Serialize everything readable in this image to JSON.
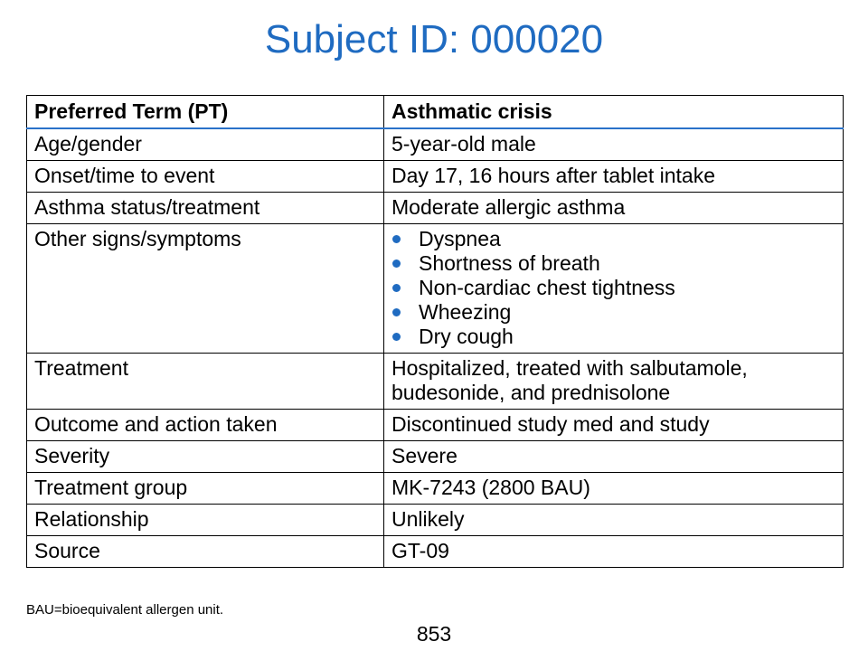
{
  "title": "Subject ID: 000020",
  "table": {
    "header": {
      "label": "Preferred Term (PT)",
      "value": "Asthmatic crisis"
    },
    "rows": [
      {
        "label": "Age/gender",
        "value": "5-year-old male"
      },
      {
        "label": "Onset/time to event",
        "value": "Day 17, 16 hours after tablet intake"
      },
      {
        "label": "Asthma status/treatment",
        "value": "Moderate allergic asthma"
      },
      {
        "label": "Other signs/symptoms",
        "items": [
          "Dyspnea",
          "Shortness of breath",
          "Non-cardiac chest tightness",
          "Wheezing",
          "Dry cough"
        ]
      },
      {
        "label": "Treatment",
        "value_line1": "Hospitalized, treated with salbutamole,",
        "value_line2": "budesonide, and prednisolone"
      },
      {
        "label": "Outcome and action taken",
        "value": "Discontinued study med and study"
      },
      {
        "label": "Severity",
        "value": "Severe"
      },
      {
        "label": "Treatment group",
        "value": "MK-7243 (2800 BAU)"
      },
      {
        "label": "Relationship",
        "value": "Unlikely"
      },
      {
        "label": "Source",
        "value": "GT-09"
      }
    ]
  },
  "footnote": "BAU=bioequivalent allergen unit.",
  "page_number": "853",
  "colors": {
    "title": "#1f6bc1",
    "bullet": "#1f6bc1",
    "header_rule": "#2a72c9"
  }
}
